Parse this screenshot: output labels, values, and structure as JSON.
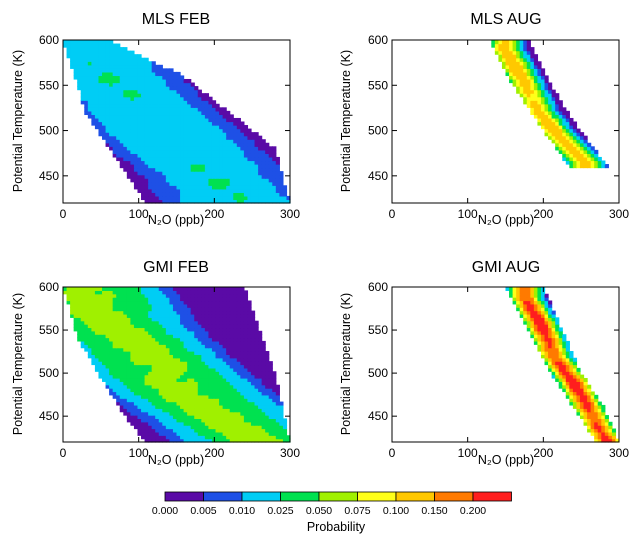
{
  "chart_data": [
    {
      "type": "contour",
      "title": "MLS FEB",
      "xlabel": "N₂O (ppb)",
      "ylabel": "Potential Temperature (K)",
      "xlim": [
        0,
        300
      ],
      "ylim": [
        420,
        600
      ],
      "xticks": [
        0,
        100,
        200,
        300
      ],
      "yticks": [
        450,
        500,
        550,
        600
      ],
      "ridge": [
        [
          25,
          600
        ],
        [
          60,
          560
        ],
        [
          110,
          520
        ],
        [
          160,
          480
        ],
        [
          200,
          450
        ],
        [
          230,
          420
        ]
      ],
      "spread_n2o": 75,
      "peak_prob": 0.022,
      "extent": {
        "left": [
          [
            0,
            600
          ],
          [
            30,
            520
          ],
          [
            70,
            470
          ],
          [
            110,
            420
          ]
        ],
        "right": [
          [
            60,
            600
          ],
          [
            160,
            560
          ],
          [
            220,
            520
          ],
          [
            280,
            480
          ],
          [
            300,
            420
          ]
        ]
      }
    },
    {
      "type": "contour",
      "title": "MLS AUG",
      "xlabel": "N₂O (ppb)",
      "ylabel": "Potential Temperature (K)",
      "xlim": [
        0,
        300
      ],
      "ylim": [
        420,
        600
      ],
      "xticks": [
        0,
        100,
        200,
        300
      ],
      "yticks": [
        450,
        500,
        550,
        600
      ],
      "ridge": [
        [
          150,
          590
        ],
        [
          170,
          560
        ],
        [
          195,
          520
        ],
        [
          225,
          490
        ],
        [
          255,
          465
        ]
      ],
      "spread_n2o": 16,
      "peak_prob": 0.12,
      "extent": {
        "left": [
          [
            130,
            600
          ],
          [
            160,
            550
          ],
          [
            200,
            500
          ],
          [
            235,
            460
          ]
        ],
        "right": [
          [
            180,
            600
          ],
          [
            210,
            550
          ],
          [
            240,
            510
          ],
          [
            285,
            460
          ]
        ]
      }
    },
    {
      "type": "contour",
      "title": "GMI FEB",
      "xlabel": "N₂O (ppb)",
      "ylabel": "Potential Temperature (K)",
      "xlim": [
        0,
        300
      ],
      "ylim": [
        420,
        600
      ],
      "xticks": [
        0,
        100,
        200,
        300
      ],
      "yticks": [
        450,
        500,
        550,
        600
      ],
      "ridge": [
        [
          30,
          600
        ],
        [
          60,
          560
        ],
        [
          110,
          520
        ],
        [
          160,
          480
        ],
        [
          210,
          450
        ],
        [
          260,
          420
        ]
      ],
      "spread_n2o": 70,
      "peak_prob": 0.06,
      "extent": {
        "left": [
          [
            0,
            600
          ],
          [
            20,
            540
          ],
          [
            60,
            480
          ],
          [
            90,
            440
          ],
          [
            110,
            420
          ]
        ],
        "right": [
          [
            240,
            600
          ],
          [
            260,
            550
          ],
          [
            280,
            500
          ],
          [
            300,
            420
          ]
        ]
      }
    },
    {
      "type": "contour",
      "title": "GMI AUG",
      "xlabel": "N₂O (ppb)",
      "ylabel": "Potential Temperature (K)",
      "xlim": [
        0,
        300
      ],
      "ylim": [
        420,
        600
      ],
      "xticks": [
        0,
        100,
        200,
        300
      ],
      "yticks": [
        450,
        500,
        550,
        600
      ],
      "ridge": [
        [
          175,
          590
        ],
        [
          195,
          560
        ],
        [
          215,
          520
        ],
        [
          240,
          490
        ],
        [
          265,
          450
        ],
        [
          285,
          420
        ]
      ],
      "spread_n2o": 14,
      "peak_prob": 0.22,
      "extent": {
        "left": [
          [
            150,
            600
          ],
          [
            180,
            550
          ],
          [
            210,
            500
          ],
          [
            240,
            460
          ],
          [
            270,
            420
          ]
        ],
        "right": [
          [
            200,
            600
          ],
          [
            225,
            550
          ],
          [
            250,
            500
          ],
          [
            280,
            460
          ],
          [
            300,
            420
          ]
        ]
      }
    }
  ],
  "colorbar": {
    "title": "Probability",
    "levels": [
      "0.000",
      "0.005",
      "0.010",
      "0.025",
      "0.050",
      "0.075",
      "0.100",
      "0.150",
      "0.200"
    ],
    "colors": [
      "#5a0aa6",
      "#1e50e6",
      "#00cdf5",
      "#00e150",
      "#a0f000",
      "#ffff19",
      "#ffc800",
      "#ff7a00",
      "#ff1e1e"
    ]
  }
}
